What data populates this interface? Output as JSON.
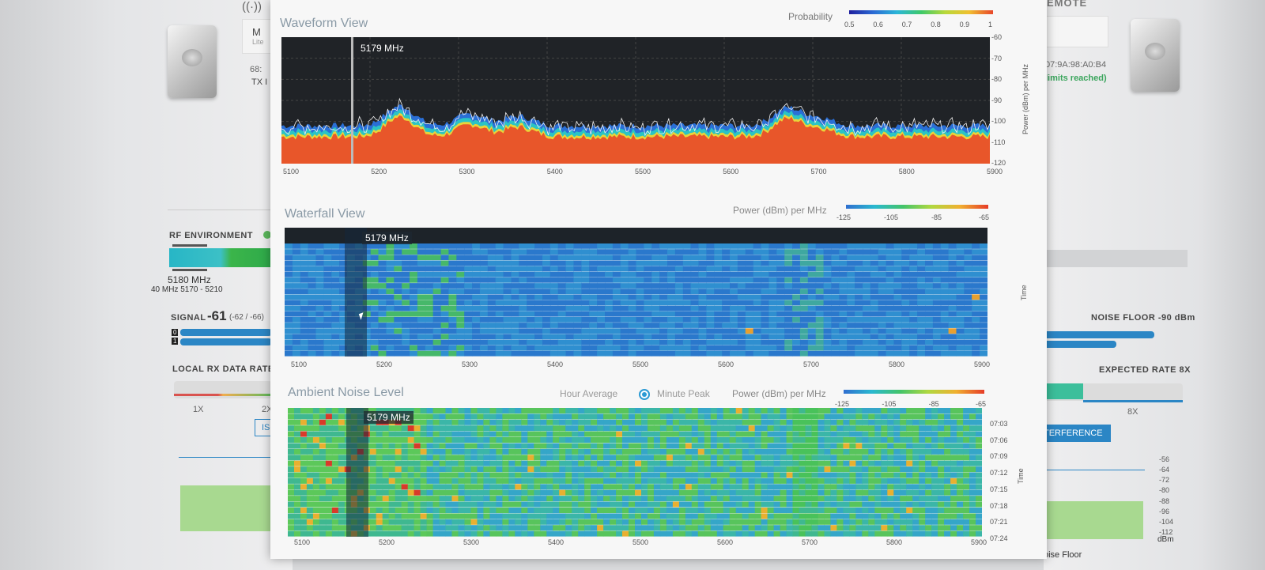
{
  "background_left": {
    "device_name": "M",
    "device_model": "Lite",
    "mac_partial": "68:",
    "tx_label": "TX I",
    "rf_environment": "RF ENVIRONMENT",
    "frequency": "5180 MHz",
    "channel": "40 MHz 5170 - 5210",
    "signal_label": "SIGNAL",
    "signal_value": "-61",
    "signal_chains": "(-62 / -66)",
    "chain_0": "0",
    "chain_1": "1",
    "local_rx_rate": "LOCAL RX DATA RATE",
    "rate_1x": "1X",
    "rate_2x": "2X",
    "iso_button": "ISO"
  },
  "background_right": {
    "remote_label": "EMOTE",
    "mac_partial": "07:9A:98:A0:B4",
    "limits": "limits reached)",
    "noise_floor": "NOISE FLOOR -90 dBm",
    "expected_rate": "EXPECTED RATE 8X",
    "rate_8x": "8X",
    "interference_button": "TERFERENCE",
    "dbm_scale": [
      "-56",
      "-64",
      "-72",
      "-80",
      "-88",
      "-96",
      "-104",
      "-112"
    ],
    "dbm_unit": "dBm",
    "noise_floor_bottom": "oise Floor"
  },
  "waveform": {
    "title": "Waveform View",
    "probability_label": "Probability",
    "prob_ticks": [
      "0.5",
      "0.6",
      "0.7",
      "0.8",
      "0.9",
      "1"
    ],
    "cursor_freq": "5179 MHz",
    "x_ticks": [
      "5100",
      "5200",
      "5300",
      "5400",
      "5500",
      "5600",
      "5700",
      "5800",
      "5900"
    ],
    "y_ticks": [
      "-60",
      "-70",
      "-80",
      "-90",
      "-100",
      "-110",
      "-120"
    ],
    "y_axis_label": "Power (dBm) per MHz"
  },
  "waterfall": {
    "title": "Waterfall View",
    "legend_label": "Power (dBm) per MHz",
    "legend_ticks": [
      "-125",
      "-105",
      "-85",
      "-65"
    ],
    "cursor_freq": "5179 MHz",
    "x_ticks": [
      "5100",
      "5200",
      "5300",
      "5400",
      "5500",
      "5600",
      "5700",
      "5800",
      "5900"
    ],
    "y_axis_label": "Time"
  },
  "ambient": {
    "title": "Ambient Noise Level",
    "option_hour": "Hour Average",
    "option_minute": "Minute Peak",
    "legend_label": "Power (dBm) per MHz",
    "legend_ticks": [
      "-125",
      "-105",
      "-85",
      "-65"
    ],
    "cursor_freq": "5179 MHz",
    "x_ticks": [
      "5100",
      "5200",
      "5300",
      "5400",
      "5500",
      "5600",
      "5700",
      "5800",
      "5900"
    ],
    "time_ticks": [
      "07:03",
      "07:06",
      "07:09",
      "07:12",
      "07:15",
      "07:18",
      "07:21",
      "07:24"
    ],
    "y_axis_label": "Time"
  },
  "colors": {
    "accent_blue": "#2b86c5",
    "green": "#5cb85c",
    "waveform_bg": "#202327",
    "spectrum_fill": "#e8562a"
  }
}
